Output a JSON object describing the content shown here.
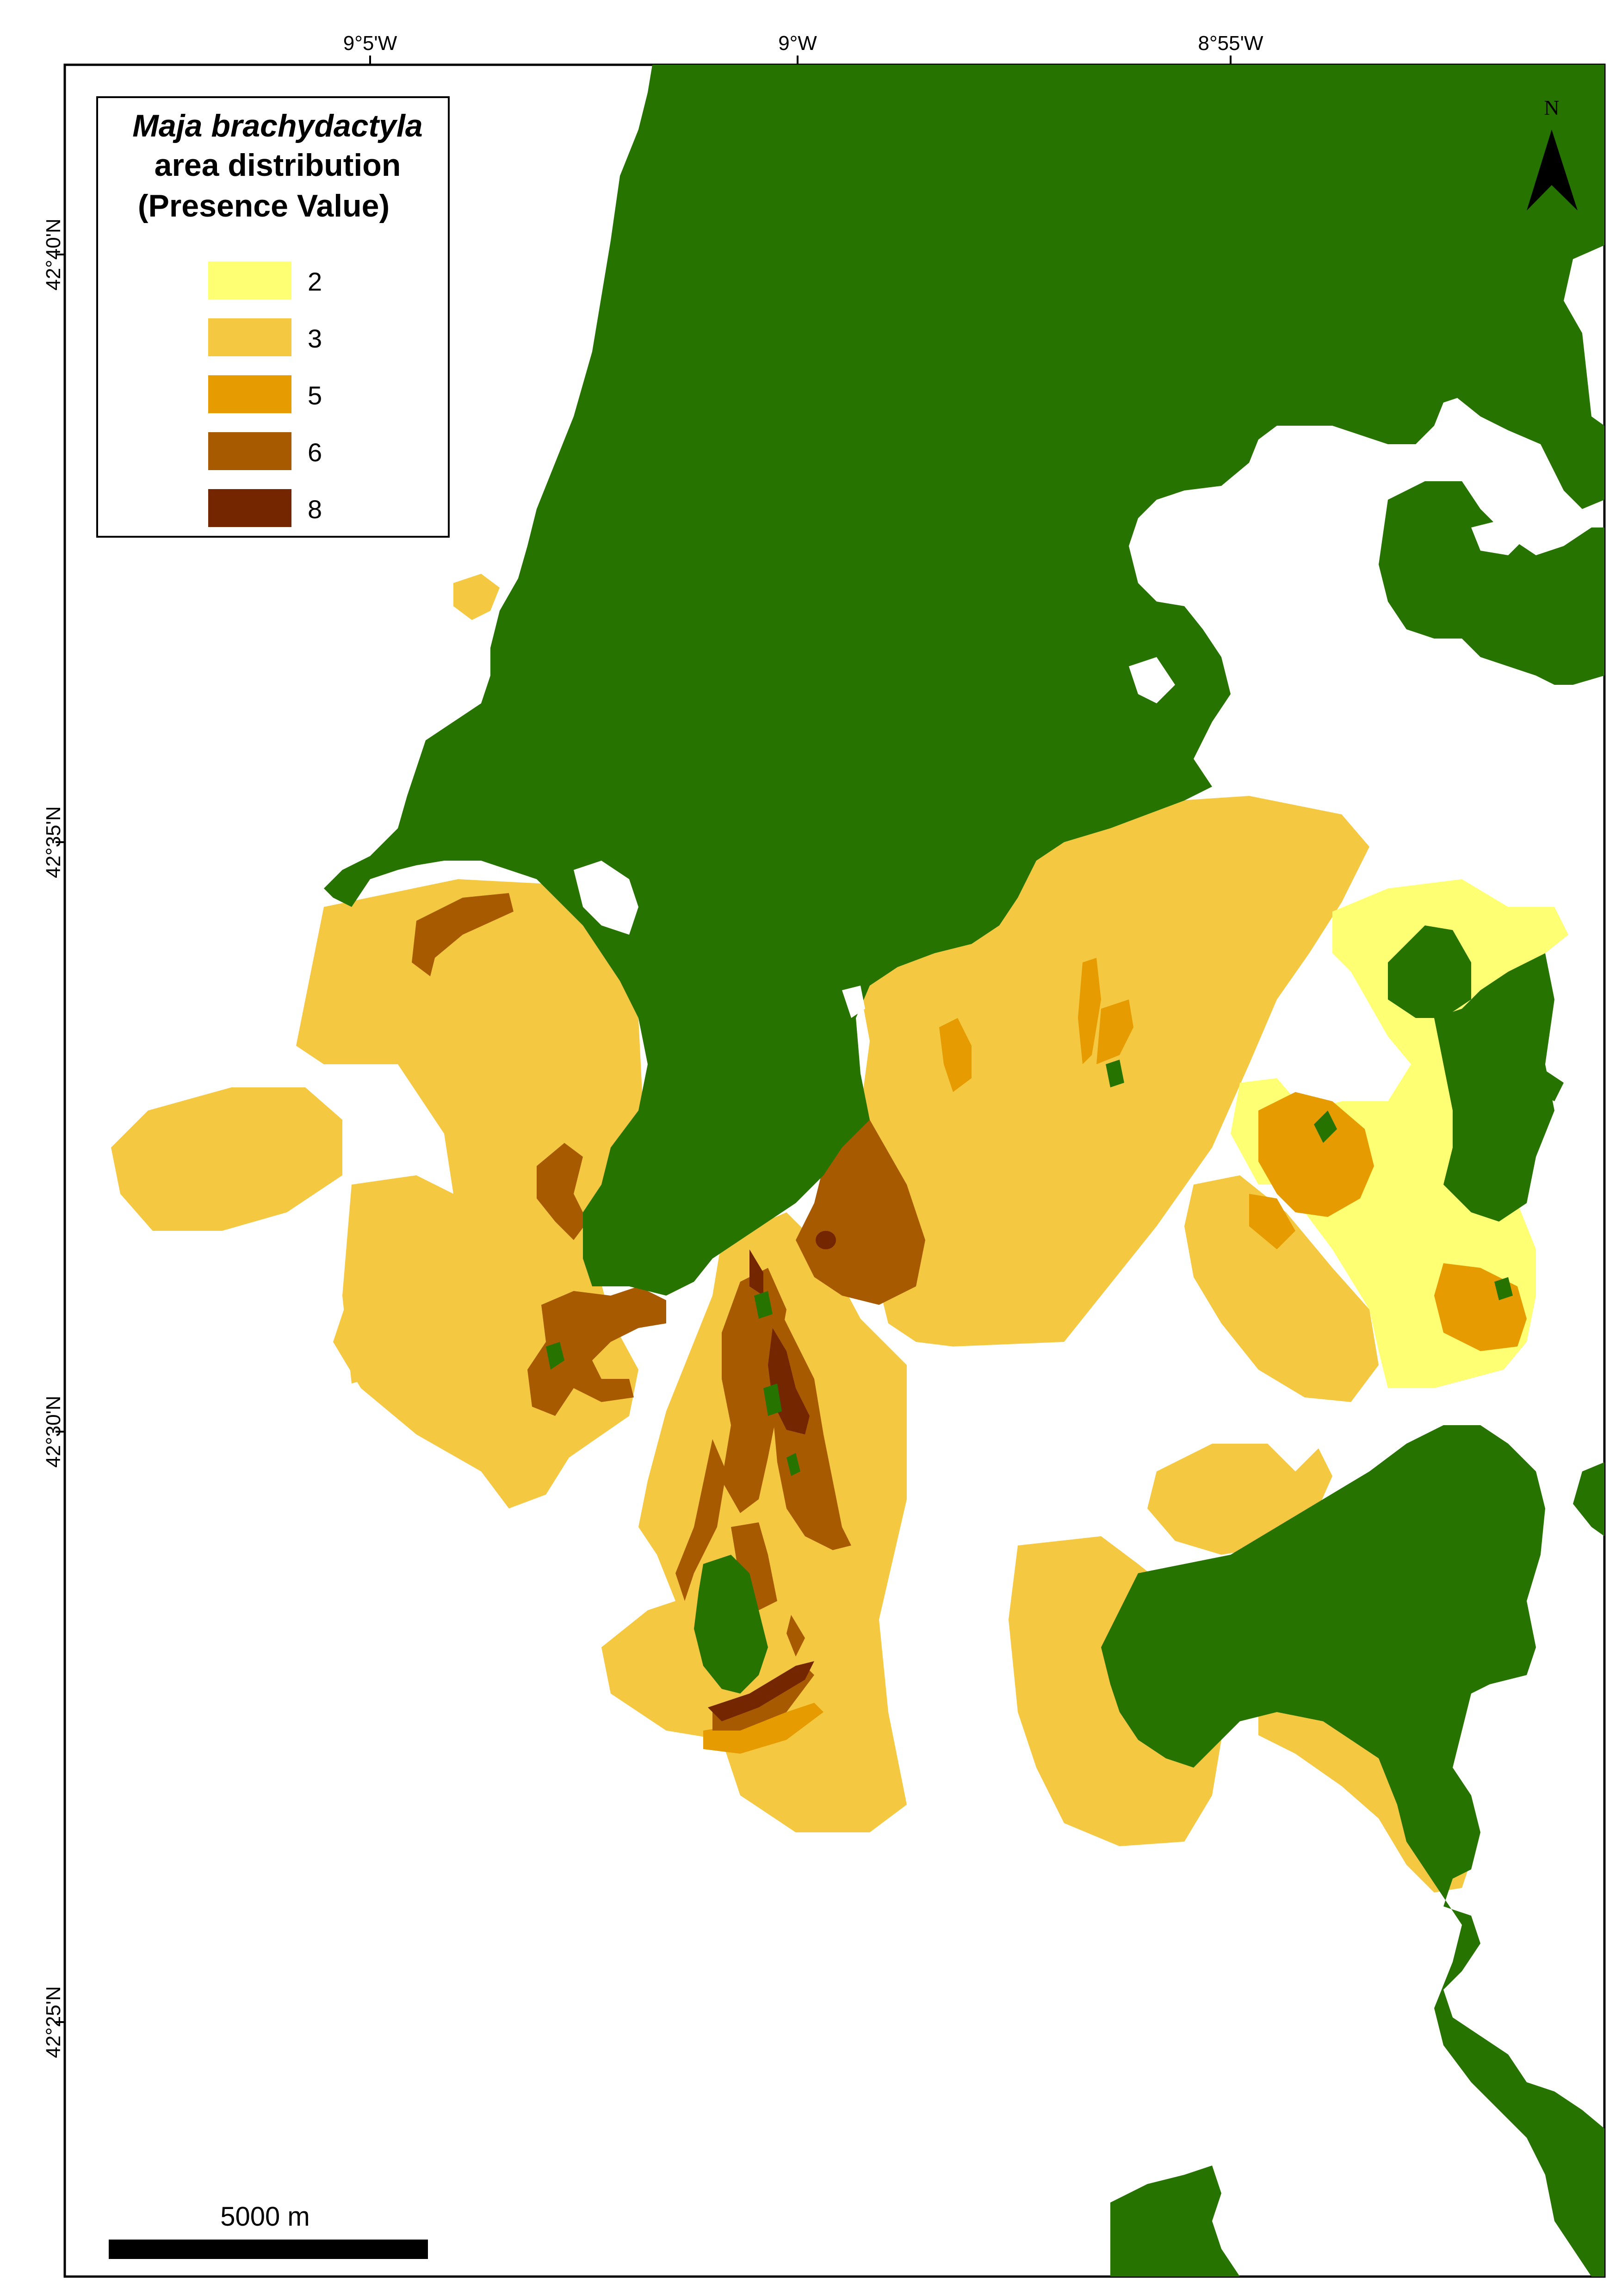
{
  "map": {
    "title_italic": "Maja brachydactyla",
    "title_line2": "area distribution",
    "title_line3": "(Presence Value)",
    "legend": [
      {
        "label": "2",
        "color": "#FFFF73"
      },
      {
        "label": "3",
        "color": "#F5C842"
      },
      {
        "label": "5",
        "color": "#E69B00"
      },
      {
        "label": "6",
        "color": "#A85A00"
      },
      {
        "label": "8",
        "color": "#732600"
      }
    ],
    "land_color": "#267300",
    "x_ticks": [
      "9°5'W",
      "9°W",
      "8°55'W"
    ],
    "y_ticks": [
      "42°40'N",
      "42°35'N",
      "42°30'N",
      "42°25'N"
    ],
    "north_label": "N",
    "scale_label": "5000 m"
  }
}
